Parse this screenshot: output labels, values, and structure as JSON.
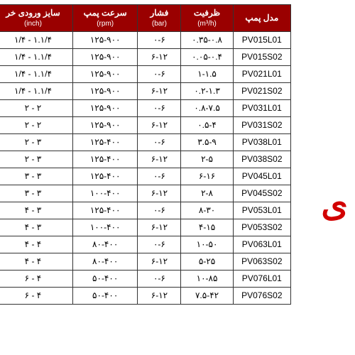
{
  "sideText": "ی",
  "headers": {
    "model": {
      "main": "مدل پمپ",
      "sub": ""
    },
    "capacity": {
      "main": "ظرفیت",
      "sub": "(m³/h)"
    },
    "pressure": {
      "main": "فشار",
      "sub": "(bar)"
    },
    "speed": {
      "main": "سرعت پمپ",
      "sub": "(rpm)"
    },
    "size": {
      "main": "سایز ورودی خر",
      "sub": "(inch)"
    }
  },
  "rows": [
    {
      "model": "PV015L01",
      "capacity": "۰.۳۵-۰.۸",
      "pressure": "۰-۶",
      "speed": "۱۲۵-۹۰۰",
      "size": "۱/۴ - ۱.۱/۴"
    },
    {
      "model": "PV015S02",
      "capacity": "۰.۰۵-۰.۴",
      "pressure": "۶-۱۲",
      "speed": "۱۲۵-۹۰۰",
      "size": "۱/۴ - ۱.۱/۴"
    },
    {
      "model": "PV021L01",
      "capacity": "۱-۱.۵",
      "pressure": "۰-۶",
      "speed": "۱۲۵-۹۰۰",
      "size": "۱/۴ - ۱.۱/۴"
    },
    {
      "model": "PV021S02",
      "capacity": "۰.۲-۱.۳",
      "pressure": "۶-۱۲",
      "speed": "۱۲۵-۹۰۰",
      "size": "۱/۴ - ۱.۱/۴"
    },
    {
      "model": "PV031L01",
      "capacity": "۰.۸-۷.۵",
      "pressure": "۰-۶",
      "speed": "۱۲۵-۹۰۰",
      "size": "۲ - ۲"
    },
    {
      "model": "PV031S02",
      "capacity": "۰.۵-۴",
      "pressure": "۶-۱۲",
      "speed": "۱۲۵-۹۰۰",
      "size": "۲ - ۲"
    },
    {
      "model": "PV038L01",
      "capacity": "۳.۵-۹",
      "pressure": "۰-۶",
      "speed": "۱۲۵-۴۰۰",
      "size": "۲ - ۳"
    },
    {
      "model": "PV038S02",
      "capacity": "۲-۵",
      "pressure": "۶-۱۲",
      "speed": "۱۲۵-۴۰۰",
      "size": "۲ - ۳"
    },
    {
      "model": "PV045L01",
      "capacity": "۶-۱۶",
      "pressure": "۰-۶",
      "speed": "۱۲۵-۴۰۰",
      "size": "۳ - ۳"
    },
    {
      "model": "PV045S02",
      "capacity": "۲-۸",
      "pressure": "۶-۱۲",
      "speed": "۱۰۰-۴۰۰",
      "size": "۳ - ۳"
    },
    {
      "model": "PV053L01",
      "capacity": "۸-۳۰",
      "pressure": "۰-۶",
      "speed": "۱۲۵-۴۰۰",
      "size": "۴ - ۳"
    },
    {
      "model": "PV053S02",
      "capacity": "۴-۱۵",
      "pressure": "۶-۱۲",
      "speed": "۱۰۰-۴۰۰",
      "size": "۴ - ۳"
    },
    {
      "model": "PV063L01",
      "capacity": "۱۰-۵۰",
      "pressure": "۰-۶",
      "speed": "۸۰-۴۰۰",
      "size": "۴ - ۴"
    },
    {
      "model": "PV063S02",
      "capacity": "۵-۲۵",
      "pressure": "۶-۱۲",
      "speed": "۸۰-۴۰۰",
      "size": "۴ - ۴"
    },
    {
      "model": "PV076L01",
      "capacity": "۱۰-۸۵",
      "pressure": "۰-۶",
      "speed": "۵۰-۴۰۰",
      "size": "۶ - ۴"
    },
    {
      "model": "PV076S02",
      "capacity": "۷.۵-۴۲",
      "pressure": "۶-۱۲",
      "speed": "۵۰-۴۰۰",
      "size": "۶ - ۴"
    }
  ],
  "colors": {
    "headerBg": "#9a0000",
    "headerText": "#ffffff",
    "cellBg": "#ffffff",
    "cellText": "#000000",
    "border": "#333333",
    "sideTextColor": "#d20000"
  }
}
